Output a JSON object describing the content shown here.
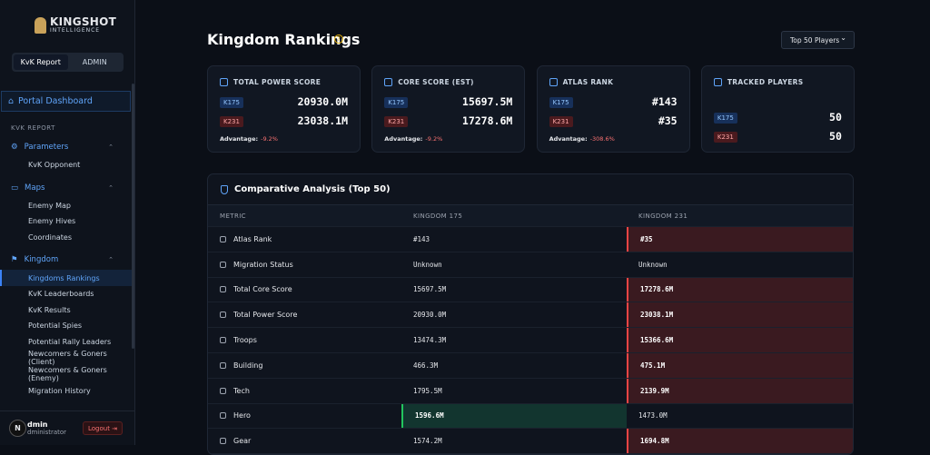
{
  "brand": {
    "name": "KINGSHOT",
    "sub": "INTELLIGENCE"
  },
  "tabs": [
    "KvK Report",
    "ADMIN"
  ],
  "nav": {
    "portal": "Portal Dashboard",
    "section": "KVK REPORT",
    "groups": [
      {
        "label": "Parameters",
        "items": [
          "KvK Opponent"
        ]
      },
      {
        "label": "Maps",
        "items": [
          "Enemy Map",
          "Enemy Hives",
          "Coordinates"
        ]
      },
      {
        "label": "Kingdom",
        "items": [
          "Kingdoms Rankings",
          "KvK Leaderboards",
          "KvK Results",
          "Potential Spies",
          "Potential Rally Leaders",
          "Newcomers & Goners (Client)",
          "Newcomers & Goners (Enemy)",
          "Migration History"
        ]
      }
    ]
  },
  "user": {
    "initial": "N",
    "name": "dmin",
    "role": "dministrator",
    "logout": "Logout"
  },
  "header": {
    "title": "Kingdom Rankings",
    "filter": "Top 50 Players"
  },
  "cards": [
    {
      "title": "TOTAL POWER SCORE",
      "rows": [
        {
          "tag": "K175",
          "value": "20930.0M"
        },
        {
          "tag": "K231",
          "value": "23038.1M"
        }
      ],
      "adv_label": "Advantage:",
      "adv": "-9.2%"
    },
    {
      "title": "CORE SCORE (EST)",
      "rows": [
        {
          "tag": "K175",
          "value": "15697.5M"
        },
        {
          "tag": "K231",
          "value": "17278.6M"
        }
      ],
      "adv_label": "Advantage:",
      "adv": "-9.2%"
    },
    {
      "title": "ATLAS RANK",
      "rows": [
        {
          "tag": "K175",
          "value": "#143"
        },
        {
          "tag": "K231",
          "value": "#35"
        }
      ],
      "adv_label": "Advantage:",
      "adv": "-308.6%"
    },
    {
      "title": "TRACKED PLAYERS",
      "rows": [
        {
          "tag": "K175",
          "value": "50"
        },
        {
          "tag": "K231",
          "value": "50"
        }
      ]
    }
  ],
  "table": {
    "title": "Comparative Analysis (Top 50)",
    "columns": [
      "METRIC",
      "KINGDOM 175",
      "KINGDOM 231"
    ],
    "rows": [
      {
        "cells": [
          "Atlas Rank",
          "#143",
          "#35"
        ],
        "highlight": 2
      },
      {
        "cells": [
          "Migration Status",
          "Unknown",
          "Unknown"
        ],
        "highlight": 0
      },
      {
        "cells": [
          "Total Core Score",
          "15697.5M",
          "17278.6M"
        ],
        "highlight": 2
      },
      {
        "cells": [
          "Total Power Score",
          "20930.0M",
          "23038.1M"
        ],
        "highlight": 2
      },
      {
        "cells": [
          "Troops",
          "13474.3M",
          "15366.6M"
        ],
        "highlight": 2
      },
      {
        "cells": [
          "Building",
          "466.3M",
          "475.1M"
        ],
        "highlight": 2
      },
      {
        "cells": [
          "Tech",
          "1795.5M",
          "2139.9M"
        ],
        "highlight": 2
      },
      {
        "cells": [
          "Hero",
          "1596.6M",
          "1473.0M"
        ],
        "highlight": 1
      },
      {
        "cells": [
          "Gear",
          "1574.2M",
          "1694.8M"
        ],
        "highlight": 2
      }
    ]
  }
}
